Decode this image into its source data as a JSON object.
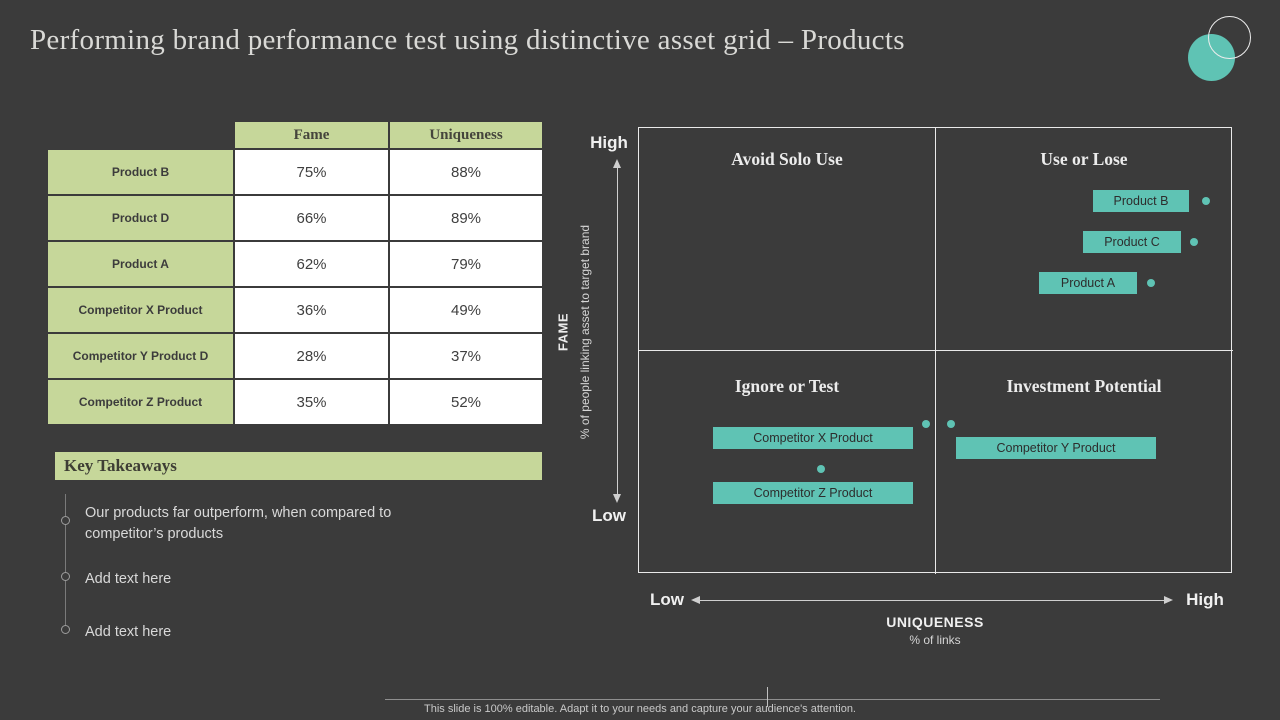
{
  "slide": {
    "title": "Performing brand performance test using distinctive asset grid – Products",
    "footer": "This slide is 100% editable. Adapt it to your needs and capture your audience's attention."
  },
  "colors": {
    "background": "#3b3b3b",
    "accent_green": "#c6d79a",
    "accent_teal": "#5fc3b4",
    "light_text": "#ececec",
    "dark_text": "#3d3d3d"
  },
  "table": {
    "headers": {
      "fame": "Fame",
      "uniqueness": "Uniqueness"
    },
    "rows": [
      {
        "label": "Product B",
        "fame": "75%",
        "uniqueness": "88%"
      },
      {
        "label": "Product D",
        "fame": "66%",
        "uniqueness": "89%"
      },
      {
        "label": "Product A",
        "fame": "62%",
        "uniqueness": "79%"
      },
      {
        "label": "Competitor X Product",
        "fame": "36%",
        "uniqueness": "49%"
      },
      {
        "label": "Competitor Y Product D",
        "fame": "28%",
        "uniqueness": "37%"
      },
      {
        "label": "Competitor Z Product",
        "fame": "35%",
        "uniqueness": "52%"
      }
    ]
  },
  "key_takeaways": {
    "title": "Key Takeaways",
    "items": [
      "Our products far outperform, when compared to competitor’s products",
      "Add text here",
      "Add text here"
    ]
  },
  "chart_data": {
    "type": "scatter",
    "x_axis": {
      "label": "UNIQUENESS",
      "sublabel": "% of links",
      "min_label": "Low",
      "max_label": "High"
    },
    "y_axis": {
      "label": "FAME",
      "sublabel": "% of people linking asset to target brand",
      "min_label": "Low",
      "max_label": "High"
    },
    "quadrants": {
      "top_left": "Avoid Solo Use",
      "top_right": "Use or Lose",
      "bottom_left": "Ignore or Test",
      "bottom_right": "Investment Potential"
    },
    "points": [
      {
        "label": "Product B",
        "quadrant": "Use or Lose",
        "fame": "High",
        "uniqueness": "High"
      },
      {
        "label": "Product C",
        "quadrant": "Use or Lose",
        "fame": "High",
        "uniqueness": "High"
      },
      {
        "label": "Product A",
        "quadrant": "Use or Lose",
        "fame": "High",
        "uniqueness": "High"
      },
      {
        "label": "Competitor X Product",
        "quadrant": "Ignore or Test",
        "fame": "Low",
        "uniqueness": "Low"
      },
      {
        "label": "Competitor Z Product",
        "quadrant": "Ignore or Test",
        "fame": "Low",
        "uniqueness": "Low"
      },
      {
        "label": "Competitor Y Product",
        "quadrant": "Investment Potential",
        "fame": "Low",
        "uniqueness": "High"
      }
    ]
  }
}
